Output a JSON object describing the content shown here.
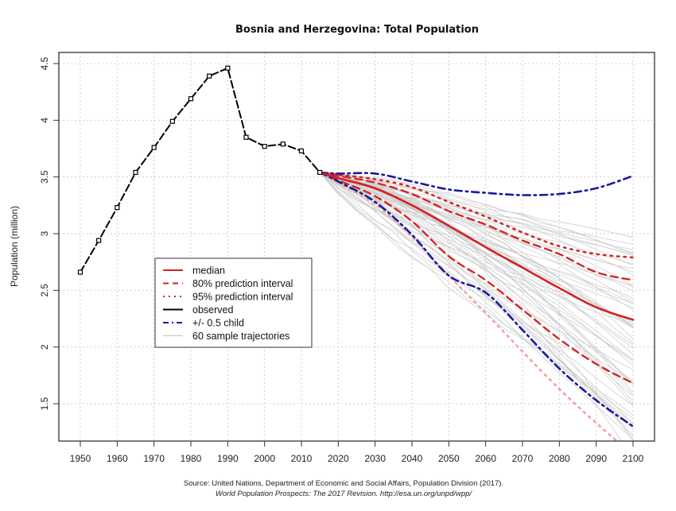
{
  "chart_data": {
    "type": "line",
    "title": "Bosnia and Herzegovina: Total Population",
    "xlabel": "",
    "ylabel": "Population (million)",
    "xlim": [
      1945,
      2105
    ],
    "ylim": [
      1.2,
      4.55
    ],
    "grid": true,
    "x_ticks": [
      1950,
      1960,
      1970,
      1980,
      1990,
      2000,
      2010,
      2020,
      2030,
      2040,
      2050,
      2060,
      2070,
      2080,
      2090,
      2100
    ],
    "y_ticks": [
      1.5,
      2,
      2.5,
      3,
      3.5,
      4,
      4.5
    ],
    "y_tick_labels": [
      "1.5",
      "2",
      "2.5",
      "3",
      "3.5",
      "4",
      "4.5"
    ],
    "legend_placement": "center-left",
    "legend": [
      {
        "label": "median",
        "color": "#d62020",
        "style": "solid"
      },
      {
        "label": "80% prediction interval",
        "color": "#d62020",
        "style": "dashed"
      },
      {
        "label": "95% prediction interval",
        "color": "#d62020",
        "style": "dotted"
      },
      {
        "label": "observed",
        "color": "#000000",
        "style": "solid"
      },
      {
        "label": "+/- 0.5 child",
        "color": "#1a1a9c",
        "style": "dashdot"
      },
      {
        "label": "60 sample trajectories",
        "color": "#c0c0c0",
        "style": "solid"
      }
    ],
    "series": [
      {
        "name": "observed",
        "color": "#000000",
        "x": [
          1950,
          1955,
          1960,
          1965,
          1970,
          1975,
          1980,
          1985,
          1990,
          1995,
          2000,
          2005,
          2010,
          2015
        ],
        "values": [
          2.66,
          2.94,
          3.23,
          3.54,
          3.76,
          3.99,
          4.19,
          4.39,
          4.46,
          3.85,
          3.77,
          3.79,
          3.73,
          3.54
        ]
      },
      {
        "name": "median",
        "color": "#d62020",
        "x": [
          2015,
          2020,
          2030,
          2040,
          2050,
          2060,
          2070,
          2080,
          2090,
          2100
        ],
        "values": [
          3.54,
          3.49,
          3.4,
          3.25,
          3.07,
          2.88,
          2.7,
          2.52,
          2.35,
          2.24
        ]
      },
      {
        "name": "80% upper",
        "color": "#d62020",
        "x": [
          2015,
          2020,
          2030,
          2040,
          2050,
          2060,
          2070,
          2080,
          2090,
          2100
        ],
        "values": [
          3.54,
          3.51,
          3.45,
          3.35,
          3.2,
          3.08,
          2.94,
          2.82,
          2.66,
          2.59
        ]
      },
      {
        "name": "80% lower",
        "color": "#d62020",
        "x": [
          2015,
          2020,
          2030,
          2040,
          2050,
          2060,
          2070,
          2080,
          2090,
          2100
        ],
        "values": [
          3.54,
          3.47,
          3.33,
          3.11,
          2.8,
          2.59,
          2.33,
          2.07,
          1.85,
          1.68
        ]
      },
      {
        "name": "95% upper",
        "color": "#d62020",
        "x": [
          2015,
          2020,
          2030,
          2040,
          2050,
          2060,
          2070,
          2080,
          2090,
          2100
        ],
        "values": [
          3.54,
          3.52,
          3.48,
          3.41,
          3.28,
          3.15,
          3.01,
          2.89,
          2.82,
          2.79
        ]
      },
      {
        "name": "95% lower",
        "color": "#f0a0a0",
        "x": [
          2015,
          2020,
          2030,
          2040,
          2050,
          2060,
          2070,
          2080,
          2090,
          2100
        ],
        "values": [
          3.54,
          3.45,
          3.26,
          2.97,
          2.63,
          2.3,
          1.96,
          1.63,
          1.33,
          1.05
        ]
      },
      {
        "name": "+0.5 child",
        "color": "#1a1a9c",
        "x": [
          2015,
          2020,
          2030,
          2040,
          2050,
          2060,
          2070,
          2080,
          2090,
          2100
        ],
        "values": [
          3.54,
          3.53,
          3.53,
          3.46,
          3.39,
          3.36,
          3.34,
          3.35,
          3.4,
          3.51
        ]
      },
      {
        "name": "-0.5 child",
        "color": "#1a1a9c",
        "x": [
          2015,
          2020,
          2030,
          2040,
          2050,
          2060,
          2070,
          2080,
          2090,
          2100
        ],
        "values": [
          3.54,
          3.46,
          3.28,
          2.99,
          2.63,
          2.48,
          2.15,
          1.81,
          1.53,
          1.3
        ]
      }
    ],
    "trajectories": {
      "count": 60,
      "color": "#c8c8c8",
      "start": {
        "x": 2015,
        "value": 3.54
      },
      "end_range_2100": [
        1.1,
        2.95
      ]
    },
    "source_line1": "Source: United Nations, Department of Economic and Social Affairs, Population Division (2017).",
    "source_line2": "World Population Prospects: The 2017 Revision. http://esa.un.org/unpd/wpp/"
  }
}
